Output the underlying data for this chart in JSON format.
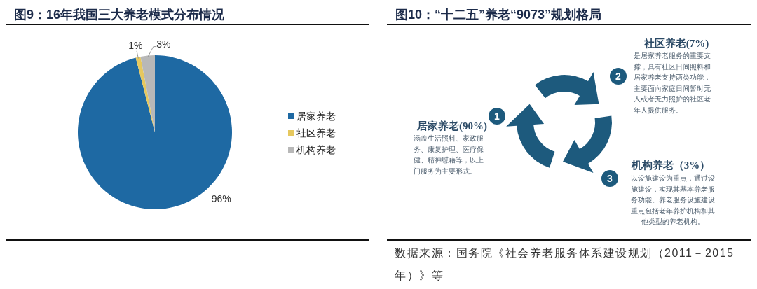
{
  "chart_data": [
    {
      "type": "pie",
      "title": "图9：16年我国三大养老模式分布情况",
      "categories": [
        "居家养老",
        "社区养老",
        "机构养老"
      ],
      "values": [
        96,
        1,
        3
      ],
      "colors": [
        "#1e69a3",
        "#e6c85e",
        "#b8b8b8"
      ],
      "value_labels": [
        "96%",
        "1%",
        "3%"
      ],
      "legend": "right"
    },
    {
      "type": "other",
      "title": "图10：“十二五”养老“9073”规划格局",
      "annotations": [
        "居家养老(90%)",
        "涵盖生活照料、家政服务、康复护理、医疗保健、精神慰藉等，以上门服务为主要形式。",
        "社区养老(7%)",
        "是居家养老服务的重要支撑，具有社区日间照料和居家养老支持两类功能，主要面向家庭日间暂时无人或者无力照护的社区老年人提供服务。",
        "机构养老（3%）",
        "以设施建设为重点，通过设施建设，实现其基本养老服务功能。养老服务设施建设重点包括老年养护机构和其他类型的养老机构。",
        "1",
        "2",
        "3",
        "数据来源：国务院《社会养老服务体系建设规划（2011－2015年）》等"
      ]
    }
  ]
}
